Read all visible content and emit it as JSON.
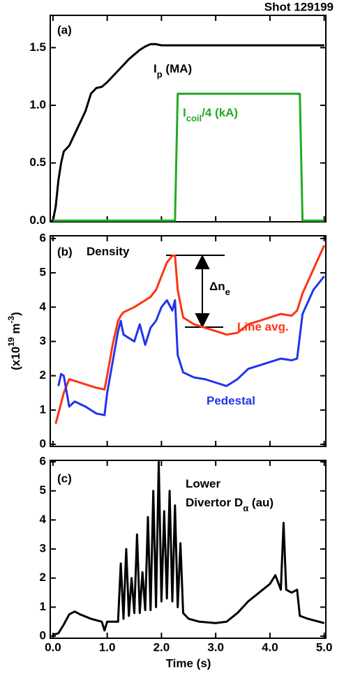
{
  "chart_data": [
    {
      "type": "line",
      "title": "Shot 129199",
      "panel_label": "(a)",
      "x": [
        0,
        0.05,
        0.1,
        0.15,
        0.2,
        0.3,
        0.4,
        0.5,
        0.6,
        0.7,
        0.8,
        0.9,
        1.0,
        1.1,
        1.2,
        1.3,
        1.4,
        1.5,
        1.6,
        1.7,
        1.8,
        1.9,
        2.0,
        2.1,
        2.2,
        2.25,
        2.3,
        2.4,
        2.6,
        2.8,
        3.0,
        3.2,
        3.4,
        3.6,
        3.8,
        4.0,
        4.2,
        4.4,
        4.5,
        4.55,
        4.6,
        4.8,
        5.0
      ],
      "series": [
        {
          "name": [
            {
              "text": "I"
            },
            {
              "text": "p",
              "sub": true
            },
            {
              "text": " (MA)"
            }
          ],
          "color": "#000000",
          "values": [
            0,
            0.12,
            0.35,
            0.5,
            0.6,
            0.65,
            0.75,
            0.85,
            0.95,
            1.1,
            1.15,
            1.16,
            1.2,
            1.25,
            1.3,
            1.35,
            1.4,
            1.44,
            1.48,
            1.51,
            1.53,
            1.53,
            1.52,
            1.52,
            1.52,
            1.52,
            1.52,
            1.52,
            1.52,
            1.52,
            1.52,
            1.52,
            1.52,
            1.52,
            1.52,
            1.52,
            1.52,
            1.52,
            1.52,
            1.52,
            1.52,
            1.52,
            1.52
          ]
        },
        {
          "name": [
            {
              "text": "I"
            },
            {
              "text": "coil",
              "sub": true
            },
            {
              "text": "/4 (kA)"
            }
          ],
          "color": "#22aa22",
          "values": [
            0,
            0,
            0,
            0,
            0,
            0,
            0,
            0,
            0,
            0,
            0,
            0,
            0,
            0,
            0,
            0,
            0,
            0,
            0,
            0,
            0,
            0,
            0,
            0,
            0,
            0,
            1.1,
            1.1,
            1.1,
            1.1,
            1.1,
            1.1,
            1.1,
            1.1,
            1.1,
            1.1,
            1.1,
            1.1,
            1.1,
            1.1,
            0,
            0,
            0
          ]
        }
      ],
      "xlim": [
        -0.05,
        5.03
      ],
      "ylim": [
        -0.01,
        1.78
      ],
      "yticks": [
        {
          "value": 0,
          "label": "0.0"
        },
        {
          "value": 0.5,
          "label": "0.5"
        },
        {
          "value": 1,
          "label": "1.0"
        },
        {
          "value": 1.5,
          "label": "1.5"
        }
      ]
    },
    {
      "type": "line",
      "panel_label": "(b)",
      "annotations": [
        [
          {
            "text": "Density"
          }
        ],
        [
          {
            "text": "Δn"
          },
          {
            "text": "e",
            "sub": true
          }
        ]
      ],
      "y_label": [
        {
          "text": "(x10"
        },
        {
          "text": "19",
          "sup": true
        },
        {
          "text": " m"
        },
        {
          "text": "-3",
          "sup": true
        },
        {
          "text": ")"
        }
      ],
      "x": [
        0.05,
        0.1,
        0.15,
        0.2,
        0.3,
        0.4,
        0.6,
        0.8,
        0.95,
        1.0,
        1.1,
        1.2,
        1.25,
        1.3,
        1.5,
        1.6,
        1.7,
        1.8,
        1.9,
        2.0,
        2.1,
        2.2,
        2.25,
        2.3,
        2.4,
        2.6,
        2.8,
        3.0,
        3.2,
        3.4,
        3.6,
        3.8,
        4.0,
        4.2,
        4.4,
        4.5,
        4.6,
        4.8,
        5.0
      ],
      "series": [
        {
          "name": [
            {
              "text": "Line avg."
            }
          ],
          "color": "#ff3311",
          "values": [
            0.6,
            0.9,
            1.2,
            1.5,
            1.9,
            1.85,
            1.75,
            1.65,
            1.6,
            2.0,
            2.9,
            3.6,
            3.75,
            3.85,
            4.0,
            4.1,
            4.2,
            4.3,
            4.5,
            4.9,
            5.3,
            5.5,
            5.5,
            4.5,
            3.7,
            3.5,
            3.4,
            3.3,
            3.2,
            3.25,
            3.5,
            3.6,
            3.7,
            3.8,
            3.75,
            3.9,
            4.4,
            5.1,
            5.8
          ]
        },
        {
          "name": [
            {
              "text": "Pedestal"
            }
          ],
          "color": "#2233ee",
          "values": [
            null,
            1.7,
            2.05,
            2.0,
            1.1,
            1.25,
            1.1,
            0.9,
            0.85,
            1.5,
            2.4,
            3.3,
            3.6,
            3.2,
            3.0,
            3.5,
            2.9,
            3.4,
            3.6,
            4.0,
            4.2,
            3.9,
            4.2,
            2.6,
            2.1,
            1.95,
            1.9,
            1.8,
            1.7,
            1.9,
            2.2,
            2.3,
            2.4,
            2.5,
            2.45,
            2.5,
            3.8,
            4.5,
            4.9
          ]
        }
      ],
      "xlim": [
        -0.05,
        5.03
      ],
      "ylim": [
        -0.06,
        6.08
      ],
      "yticks": [
        0,
        1,
        2,
        3,
        4,
        5,
        6
      ]
    },
    {
      "type": "line",
      "panel_label": "(c)",
      "annotations": [
        [
          {
            "text": "Lower"
          }
        ],
        [
          {
            "text": "Divertor D"
          },
          {
            "text": "α",
            "sub": true
          },
          {
            "text": " (au)"
          }
        ]
      ],
      "x_label": "Time (s)",
      "x": [
        0,
        0.1,
        0.2,
        0.3,
        0.4,
        0.5,
        0.7,
        0.9,
        0.95,
        1.0,
        1.2,
        1.25,
        1.3,
        1.35,
        1.4,
        1.45,
        1.5,
        1.55,
        1.6,
        1.65,
        1.7,
        1.75,
        1.8,
        1.85,
        1.9,
        1.95,
        2.0,
        2.05,
        2.1,
        2.15,
        2.2,
        2.25,
        2.3,
        2.35,
        2.4,
        2.5,
        2.7,
        3.0,
        3.2,
        3.4,
        3.6,
        3.8,
        4.0,
        4.1,
        4.2,
        4.25,
        4.3,
        4.4,
        4.5,
        4.55,
        4.7,
        5.0
      ],
      "series": [
        {
          "color": "#000000",
          "values": [
            0.05,
            0.1,
            0.4,
            0.75,
            0.85,
            0.75,
            0.6,
            0.5,
            0.2,
            0.5,
            0.5,
            2.5,
            0.6,
            3.0,
            0.7,
            2.0,
            0.8,
            3.5,
            0.8,
            2.2,
            0.9,
            4.1,
            0.9,
            5.0,
            1.0,
            6.0,
            1.2,
            4.3,
            1.3,
            5.0,
            1.2,
            4.5,
            1.0,
            3.2,
            0.8,
            0.6,
            0.5,
            0.45,
            0.5,
            0.8,
            1.2,
            1.5,
            1.8,
            2.1,
            1.6,
            3.9,
            1.6,
            1.5,
            1.6,
            0.7,
            0.6,
            0.45
          ]
        }
      ],
      "xlim": [
        -0.05,
        5.03
      ],
      "ylim": [
        -0.07,
        6.05
      ],
      "yticks": [
        0,
        1,
        2,
        3,
        4,
        5,
        6
      ],
      "xticks": [
        {
          "value": 0,
          "label": "0.0"
        },
        {
          "value": 1,
          "label": "1.0"
        },
        {
          "value": 2,
          "label": "2.0"
        },
        {
          "value": 3,
          "label": "3.0"
        },
        {
          "value": 4,
          "label": "4.0"
        },
        {
          "value": 5,
          "label": "5.0"
        }
      ]
    }
  ]
}
